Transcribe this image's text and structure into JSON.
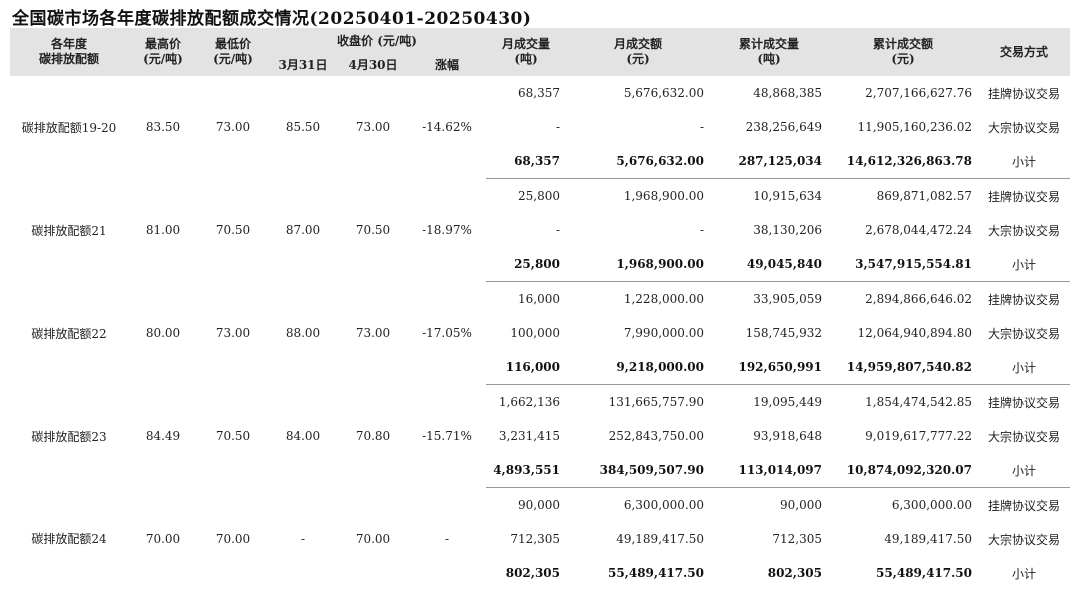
{
  "title": "全国碳市场各年度碳排放配额成交情况(20250401-20250430)",
  "headers": {
    "year_quota": [
      "各年度",
      "碳排放配额"
    ],
    "max_price": [
      "最高价",
      "(元/吨)"
    ],
    "min_price": [
      "最低价",
      "(元/吨)"
    ],
    "close_price": "收盘价 (元/吨)",
    "mar31": "3月31日",
    "apr30": "4月30日",
    "change": "涨幅",
    "monthly_volume": [
      "月成交量",
      "(吨)"
    ],
    "monthly_amount": [
      "月成交额",
      "(元)"
    ],
    "cum_volume": [
      "累计成交量",
      "(吨)"
    ],
    "cum_amount": [
      "累计成交额",
      "(元)"
    ],
    "trade_mode": "交易方式"
  },
  "groups": [
    {
      "name": "碳排放配额19-20",
      "max": "83.50",
      "min": "73.00",
      "mar31": "85.50",
      "apr30": "73.00",
      "change": "-14.62%",
      "rows": [
        {
          "mv": "68,357",
          "ma": "5,676,632.00",
          "cv": "48,868,385",
          "ca": "2,707,166,627.76",
          "mode": "挂牌协议交易"
        },
        {
          "mv": "-",
          "ma": "-",
          "cv": "238,256,649",
          "ca": "11,905,160,236.02",
          "mode": "大宗协议交易"
        },
        {
          "mv": "68,357",
          "ma": "5,676,632.00",
          "cv": "287,125,034",
          "ca": "14,612,326,863.78",
          "mode": "小计"
        }
      ]
    },
    {
      "name": "碳排放配额21",
      "max": "81.00",
      "min": "70.50",
      "mar31": "87.00",
      "apr30": "70.50",
      "change": "-18.97%",
      "rows": [
        {
          "mv": "25,800",
          "ma": "1,968,900.00",
          "cv": "10,915,634",
          "ca": "869,871,082.57",
          "mode": "挂牌协议交易"
        },
        {
          "mv": "-",
          "ma": "-",
          "cv": "38,130,206",
          "ca": "2,678,044,472.24",
          "mode": "大宗协议交易"
        },
        {
          "mv": "25,800",
          "ma": "1,968,900.00",
          "cv": "49,045,840",
          "ca": "3,547,915,554.81",
          "mode": "小计"
        }
      ]
    },
    {
      "name": "碳排放配额22",
      "max": "80.00",
      "min": "73.00",
      "mar31": "88.00",
      "apr30": "73.00",
      "change": "-17.05%",
      "rows": [
        {
          "mv": "16,000",
          "ma": "1,228,000.00",
          "cv": "33,905,059",
          "ca": "2,894,866,646.02",
          "mode": "挂牌协议交易"
        },
        {
          "mv": "100,000",
          "ma": "7,990,000.00",
          "cv": "158,745,932",
          "ca": "12,064,940,894.80",
          "mode": "大宗协议交易"
        },
        {
          "mv": "116,000",
          "ma": "9,218,000.00",
          "cv": "192,650,991",
          "ca": "14,959,807,540.82",
          "mode": "小计"
        }
      ]
    },
    {
      "name": "碳排放配额23",
      "max": "84.49",
      "min": "70.50",
      "mar31": "84.00",
      "apr30": "70.80",
      "change": "-15.71%",
      "rows": [
        {
          "mv": "1,662,136",
          "ma": "131,665,757.90",
          "cv": "19,095,449",
          "ca": "1,854,474,542.85",
          "mode": "挂牌协议交易"
        },
        {
          "mv": "3,231,415",
          "ma": "252,843,750.00",
          "cv": "93,918,648",
          "ca": "9,019,617,777.22",
          "mode": "大宗协议交易"
        },
        {
          "mv": "4,893,551",
          "ma": "384,509,507.90",
          "cv": "113,014,097",
          "ca": "10,874,092,320.07",
          "mode": "小计"
        }
      ]
    },
    {
      "name": "碳排放配额24",
      "max": "70.00",
      "min": "70.00",
      "mar31": "-",
      "apr30": "70.00",
      "change": "-",
      "rows": [
        {
          "mv": "90,000",
          "ma": "6,300,000.00",
          "cv": "90,000",
          "ca": "6,300,000.00",
          "mode": "挂牌协议交易"
        },
        {
          "mv": "712,305",
          "ma": "49,189,417.50",
          "cv": "712,305",
          "ca": "49,189,417.50",
          "mode": "大宗协议交易"
        },
        {
          "mv": "802,305",
          "ma": "55,489,417.50",
          "cv": "802,305",
          "ca": "55,489,417.50",
          "mode": "小计"
        }
      ]
    }
  ]
}
